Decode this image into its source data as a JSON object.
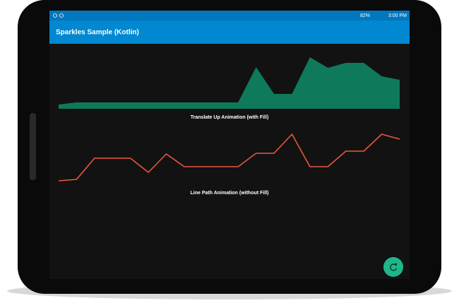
{
  "status_bar": {
    "battery": "82%",
    "time": "3:00 PM"
  },
  "app_bar": {
    "title": "Sparkles Sample (Kotlin)"
  },
  "chart_data": [
    {
      "type": "area",
      "title": "Translate Up Animation (with Fill)",
      "values": [
        6,
        9,
        9,
        9,
        9,
        9,
        9,
        9,
        9,
        9,
        9,
        59,
        21,
        21,
        73,
        58,
        65,
        65,
        46,
        41
      ],
      "color": "#0e7a5b",
      "ylim": [
        0,
        75
      ]
    },
    {
      "type": "line",
      "title": "Line Path Animation (without Fill)",
      "values": [
        4,
        6,
        36,
        36,
        36,
        16,
        42,
        24,
        24,
        24,
        24,
        43,
        43,
        70,
        24,
        24,
        46,
        46,
        70,
        63
      ],
      "color": "#e8573f",
      "ylim": [
        0,
        75
      ]
    }
  ]
}
